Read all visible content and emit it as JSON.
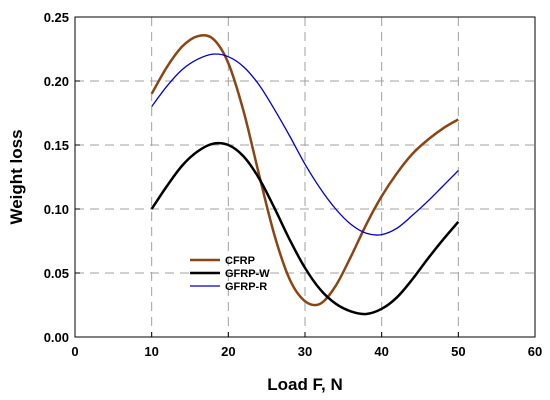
{
  "chart_data": {
    "type": "line",
    "title": "",
    "xlabel": "Load F, N",
    "ylabel": "Weight loss",
    "xlim": [
      0,
      60
    ],
    "ylim": [
      0,
      0.25
    ],
    "xticks": [
      0,
      10,
      20,
      30,
      40,
      50,
      60
    ],
    "yticks": [
      0.0,
      0.05,
      0.1,
      0.15,
      0.2,
      0.25
    ],
    "ytick_labels": [
      "0.00",
      "0.05",
      "0.10",
      "0.15",
      "0.20",
      "0.25"
    ],
    "grid": true,
    "legend_position": "center-left",
    "series": [
      {
        "name": "CFRP",
        "color": "#8B4513",
        "points": [
          [
            10,
            0.19
          ],
          [
            12,
            0.211
          ],
          [
            14,
            0.227
          ],
          [
            16,
            0.235
          ],
          [
            18,
            0.233
          ],
          [
            20,
            0.214
          ],
          [
            22,
            0.176
          ],
          [
            24,
            0.127
          ],
          [
            26,
            0.08
          ],
          [
            28,
            0.045
          ],
          [
            30,
            0.028
          ],
          [
            32,
            0.026
          ],
          [
            34,
            0.04
          ],
          [
            36,
            0.063
          ],
          [
            38,
            0.088
          ],
          [
            40,
            0.11
          ],
          [
            42,
            0.128
          ],
          [
            44,
            0.143
          ],
          [
            46,
            0.154
          ],
          [
            48,
            0.163
          ],
          [
            50,
            0.17
          ]
        ]
      },
      {
        "name": "GFRP-W",
        "color": "#000000",
        "points": [
          [
            10,
            0.1
          ],
          [
            12,
            0.118
          ],
          [
            14,
            0.134
          ],
          [
            16,
            0.145
          ],
          [
            18,
            0.151
          ],
          [
            20,
            0.15
          ],
          [
            22,
            0.141
          ],
          [
            24,
            0.124
          ],
          [
            26,
            0.101
          ],
          [
            28,
            0.076
          ],
          [
            30,
            0.054
          ],
          [
            32,
            0.037
          ],
          [
            34,
            0.026
          ],
          [
            36,
            0.02
          ],
          [
            38,
            0.018
          ],
          [
            40,
            0.022
          ],
          [
            42,
            0.031
          ],
          [
            44,
            0.045
          ],
          [
            46,
            0.061
          ],
          [
            48,
            0.076
          ],
          [
            50,
            0.09
          ]
        ]
      },
      {
        "name": "GFRP-R",
        "color": "#0000CC",
        "points": [
          [
            10,
            0.18
          ],
          [
            12,
            0.196
          ],
          [
            14,
            0.209
          ],
          [
            16,
            0.217
          ],
          [
            18,
            0.221
          ],
          [
            20,
            0.219
          ],
          [
            22,
            0.211
          ],
          [
            24,
            0.197
          ],
          [
            26,
            0.178
          ],
          [
            28,
            0.157
          ],
          [
            30,
            0.135
          ],
          [
            32,
            0.116
          ],
          [
            34,
            0.1
          ],
          [
            36,
            0.088
          ],
          [
            38,
            0.081
          ],
          [
            40,
            0.08
          ],
          [
            42,
            0.085
          ],
          [
            44,
            0.095
          ],
          [
            46,
            0.106
          ],
          [
            48,
            0.118
          ],
          [
            50,
            0.13
          ]
        ]
      }
    ]
  }
}
